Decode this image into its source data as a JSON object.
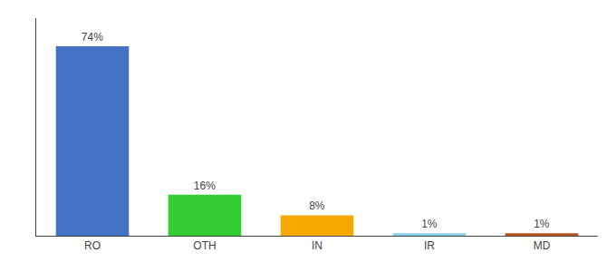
{
  "chart_data": {
    "type": "bar",
    "categories": [
      "RO",
      "OTH",
      "IN",
      "IR",
      "MD"
    ],
    "values": [
      74,
      16,
      8,
      1,
      1
    ],
    "value_labels": [
      "74%",
      "16%",
      "8%",
      "1%",
      "1%"
    ],
    "colors": [
      "#4472c4",
      "#33cc33",
      "#f5a800",
      "#87ceeb",
      "#b8521a"
    ],
    "ylim": [
      0,
      85
    ],
    "data_labels": true,
    "grid": false,
    "tick_labels": "x"
  }
}
